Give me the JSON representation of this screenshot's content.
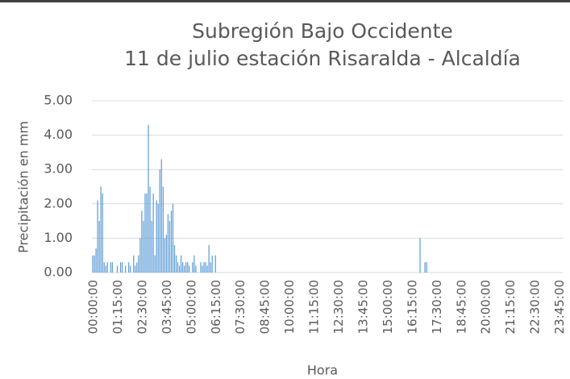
{
  "chart_data": {
    "type": "bar",
    "title": "Subregión Bajo Occidente",
    "subtitle": "11 de julio estación Risaralda - Alcaldía",
    "x_label": "Hora",
    "y_label": "Precipitación en mm",
    "color": "#5b9bd5",
    "grid": true,
    "ylim": [
      0,
      5
    ],
    "yticks": [
      {
        "value": 0,
        "label": "0.00"
      },
      {
        "value": 1,
        "label": "1.00"
      },
      {
        "value": 2,
        "label": "2.00"
      },
      {
        "value": 3,
        "label": "3.00"
      },
      {
        "value": 4,
        "label": "4.00"
      },
      {
        "value": 5,
        "label": "5.00"
      }
    ],
    "categories": [
      "00:00:00",
      null,
      null,
      null,
      null,
      null,
      null,
      null,
      null,
      null,
      null,
      null,
      null,
      null,
      null,
      "01:15:00",
      null,
      null,
      null,
      null,
      null,
      null,
      null,
      null,
      null,
      null,
      null,
      null,
      null,
      null,
      "02:30:00",
      null,
      null,
      null,
      null,
      null,
      null,
      null,
      null,
      null,
      null,
      null,
      null,
      null,
      null,
      "03:45:00",
      null,
      null,
      null,
      null,
      null,
      null,
      null,
      null,
      null,
      null,
      null,
      null,
      null,
      null,
      "05:00:00",
      null,
      null,
      null,
      null,
      null,
      null,
      null,
      null,
      null,
      null,
      null,
      null,
      null,
      null,
      "06:15:00",
      null,
      null,
      null,
      null,
      null,
      null,
      null,
      null,
      null,
      null,
      null,
      null,
      null,
      null,
      "07:30:00",
      null,
      null,
      null,
      null,
      null,
      null,
      null,
      null,
      null,
      null,
      null,
      null,
      null,
      null,
      "08:45:00",
      null,
      null,
      null,
      null,
      null,
      null,
      null,
      null,
      null,
      null,
      null,
      null,
      null,
      null,
      "10:00:00",
      null,
      null,
      null,
      null,
      null,
      null,
      null,
      null,
      null,
      null,
      null,
      null,
      null,
      null,
      "11:15:00",
      null,
      null,
      null,
      null,
      null,
      null,
      null,
      null,
      null,
      null,
      null,
      null,
      null,
      null,
      "12:30:00",
      null,
      null,
      null,
      null,
      null,
      null,
      null,
      null,
      null,
      null,
      null,
      null,
      null,
      null,
      "13:45:00",
      null,
      null,
      null,
      null,
      null,
      null,
      null,
      null,
      null,
      null,
      null,
      null,
      null,
      null,
      "15:00:00",
      null,
      null,
      null,
      null,
      null,
      null,
      null,
      null,
      null,
      null,
      null,
      null,
      null,
      null,
      "16:15:00",
      null,
      null,
      null,
      null,
      null,
      null,
      null,
      null,
      null,
      null,
      null,
      null,
      null,
      null,
      "17:30:00",
      null,
      null,
      null,
      null,
      null,
      null,
      null,
      null,
      null,
      null,
      null,
      null,
      null,
      null,
      "18:45:00",
      null,
      null,
      null,
      null,
      null,
      null,
      null,
      null,
      null,
      null,
      null,
      null,
      null,
      null,
      "20:00:00",
      null,
      null,
      null,
      null,
      null,
      null,
      null,
      null,
      null,
      null,
      null,
      null,
      null,
      null,
      "21:15:00",
      null,
      null,
      null,
      null,
      null,
      null,
      null,
      null,
      null,
      null,
      null,
      null,
      null,
      null,
      "22:30:00",
      null,
      null,
      null,
      null,
      null,
      null,
      null,
      null,
      null,
      null,
      null,
      null,
      null,
      null,
      "23:45:00",
      null,
      null
    ],
    "values": [
      0.5,
      0.5,
      0.7,
      2.1,
      1.5,
      2.5,
      2.3,
      0.3,
      0.2,
      0.3,
      0,
      0.3,
      0.3,
      0,
      0,
      0.2,
      0,
      0.3,
      0.3,
      0,
      0.2,
      0,
      0.3,
      0.2,
      0,
      0.5,
      0.2,
      0.3,
      0.5,
      1.0,
      1.8,
      1.5,
      2.3,
      2.3,
      4.3,
      2.5,
      1.5,
      2.3,
      0.5,
      2.1,
      2.0,
      3.0,
      3.3,
      2.5,
      1.0,
      1.1,
      1.7,
      1.5,
      1.8,
      2.0,
      0.8,
      0.5,
      0.3,
      0.2,
      0.5,
      0.3,
      0.2,
      0.3,
      0.3,
      0.2,
      0,
      0.3,
      0.5,
      0.2,
      0,
      0,
      0.3,
      0.2,
      0.3,
      0.3,
      0.2,
      0.8,
      0.3,
      0.5,
      0,
      0.5,
      0,
      0,
      0,
      0,
      0,
      0,
      0,
      0,
      0,
      0,
      0,
      0,
      0,
      0,
      0,
      0,
      0,
      0,
      0,
      0,
      0,
      0,
      0,
      0,
      0,
      0,
      0,
      0,
      0,
      0,
      0,
      0,
      0,
      0,
      0,
      0,
      0,
      0,
      0,
      0,
      0,
      0,
      0,
      0,
      0,
      0,
      0,
      0,
      0,
      0,
      0,
      0,
      0,
      0,
      0,
      0,
      0,
      0,
      0,
      0,
      0,
      0,
      0,
      0,
      0,
      0,
      0,
      0,
      0,
      0,
      0,
      0,
      0,
      0,
      0,
      0,
      0,
      0,
      0,
      0,
      0,
      0,
      0,
      0,
      0,
      0,
      0,
      0,
      0,
      0,
      0,
      0,
      0,
      0,
      0,
      0,
      0,
      0,
      0,
      0,
      0,
      0,
      0,
      0,
      0,
      0,
      0,
      0,
      0,
      0,
      0,
      0,
      0,
      0,
      0,
      0,
      0,
      0,
      0,
      0,
      0,
      0,
      0,
      0,
      1.0,
      0,
      0,
      0.3,
      0.3,
      0,
      0,
      0,
      0,
      0,
      0,
      0,
      0,
      0,
      0,
      0,
      0,
      0,
      0,
      0,
      0,
      0,
      0,
      0,
      0,
      0,
      0,
      0,
      0,
      0,
      0,
      0,
      0,
      0,
      0,
      0,
      0,
      0,
      0,
      0,
      0,
      0,
      0,
      0,
      0,
      0,
      0,
      0,
      0,
      0,
      0,
      0,
      0,
      0,
      0,
      0,
      0,
      0,
      0,
      0,
      0,
      0,
      0,
      0,
      0,
      0,
      0,
      0,
      0,
      0,
      0,
      0,
      0,
      0,
      0,
      0,
      0,
      0,
      0,
      0,
      0,
      0,
      0,
      0,
      0,
      0,
      0,
      0
    ]
  }
}
